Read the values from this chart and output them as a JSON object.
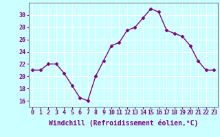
{
  "x": [
    0,
    1,
    2,
    3,
    4,
    5,
    6,
    7,
    8,
    9,
    10,
    11,
    12,
    13,
    14,
    15,
    16,
    17,
    18,
    19,
    20,
    21,
    22,
    23
  ],
  "y": [
    21,
    21,
    22,
    22,
    20.5,
    18.5,
    16.5,
    16,
    20,
    22.5,
    25,
    25.5,
    27.5,
    28,
    29.5,
    31,
    30.5,
    27.5,
    27,
    26.5,
    25,
    22.5,
    21,
    21
  ],
  "line_color": "#800080",
  "marker": "D",
  "marker_size": 2.5,
  "linewidth": 1.0,
  "bg_color": "#ccffff",
  "grid_color": "#ffffff",
  "xlabel": "Windchill (Refroidissement éolien,°C)",
  "xlabel_color": "#800080",
  "tick_color": "#800080",
  "ylim": [
    15,
    32
  ],
  "xlim": [
    -0.5,
    23.5
  ],
  "yticks": [
    16,
    18,
    20,
    22,
    24,
    26,
    28,
    30
  ],
  "xtick_labels": [
    "0",
    "1",
    "2",
    "3",
    "4",
    "5",
    "6",
    "7",
    "8",
    "9",
    "10",
    "11",
    "12",
    "13",
    "14",
    "15",
    "16",
    "17",
    "18",
    "19",
    "20",
    "21",
    "22",
    "23"
  ],
  "spine_color": "#808080",
  "label_fontsize": 7.0,
  "tick_fontsize": 6.0
}
